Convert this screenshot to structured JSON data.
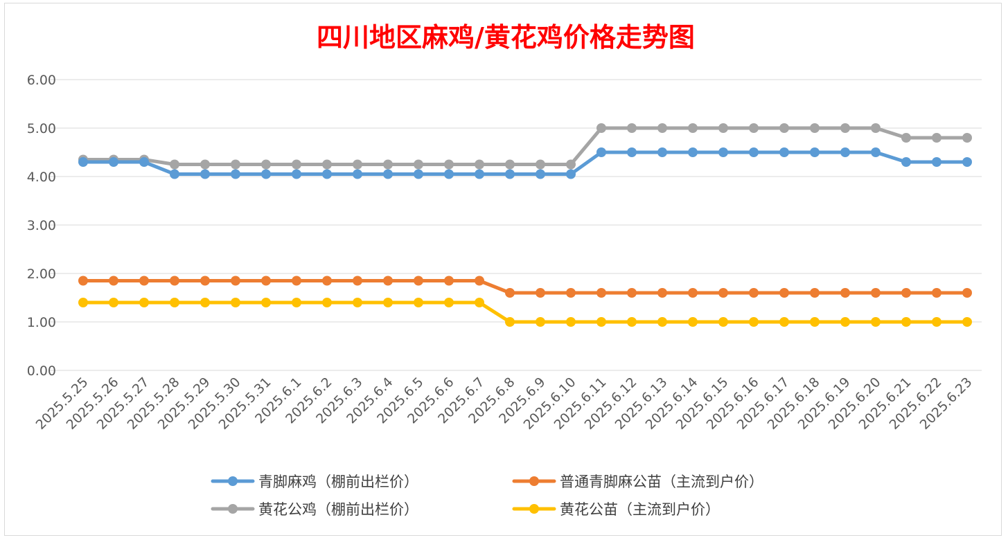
{
  "chart_data": {
    "type": "line",
    "title": "四川地区麻鸡/黄花鸡价格走势图",
    "xlabel": "",
    "ylabel": "",
    "ylim": [
      0,
      6
    ],
    "yticks": [
      "0.00",
      "1.00",
      "2.00",
      "3.00",
      "4.00",
      "5.00",
      "6.00"
    ],
    "grid": true,
    "legend_position": "bottom",
    "categories": [
      "2025.5.25",
      "2025.5.26",
      "2025.5.27",
      "2025.5.28",
      "2025.5.29",
      "2025.5.30",
      "2025.5.31",
      "2025.6.1",
      "2025.6.2",
      "2025.6.3",
      "2025.6.4",
      "2025.6.5",
      "2025.6.6",
      "2025.6.7",
      "2025.6.8",
      "2025.6.9",
      "2025.6.10",
      "2025.6.11",
      "2025.6.12",
      "2025.6.13",
      "2025.6.14",
      "2025.6.15",
      "2025.6.16",
      "2025.6.17",
      "2025.6.18",
      "2025.6.19",
      "2025.6.20",
      "2025.6.21",
      "2025.6.22",
      "2025.6.23"
    ],
    "series": [
      {
        "name": "青脚麻鸡（棚前出栏价）",
        "color": "#5b9bd5",
        "values": [
          4.3,
          4.3,
          4.3,
          4.05,
          4.05,
          4.05,
          4.05,
          4.05,
          4.05,
          4.05,
          4.05,
          4.05,
          4.05,
          4.05,
          4.05,
          4.05,
          4.05,
          4.5,
          4.5,
          4.5,
          4.5,
          4.5,
          4.5,
          4.5,
          4.5,
          4.5,
          4.5,
          4.3,
          4.3,
          4.3
        ]
      },
      {
        "name": "普通青脚麻公苗（主流到户价）",
        "color": "#ed7d31",
        "values": [
          1.85,
          1.85,
          1.85,
          1.85,
          1.85,
          1.85,
          1.85,
          1.85,
          1.85,
          1.85,
          1.85,
          1.85,
          1.85,
          1.85,
          1.6,
          1.6,
          1.6,
          1.6,
          1.6,
          1.6,
          1.6,
          1.6,
          1.6,
          1.6,
          1.6,
          1.6,
          1.6,
          1.6,
          1.6,
          1.6
        ]
      },
      {
        "name": "黄花公鸡（棚前出栏价）",
        "color": "#a5a5a5",
        "values": [
          4.35,
          4.35,
          4.35,
          4.25,
          4.25,
          4.25,
          4.25,
          4.25,
          4.25,
          4.25,
          4.25,
          4.25,
          4.25,
          4.25,
          4.25,
          4.25,
          4.25,
          5.0,
          5.0,
          5.0,
          5.0,
          5.0,
          5.0,
          5.0,
          5.0,
          5.0,
          5.0,
          4.8,
          4.8,
          4.8
        ]
      },
      {
        "name": "黄花公苗（主流到户价）",
        "color": "#ffc000",
        "values": [
          1.4,
          1.4,
          1.4,
          1.4,
          1.4,
          1.4,
          1.4,
          1.4,
          1.4,
          1.4,
          1.4,
          1.4,
          1.4,
          1.4,
          1.0,
          1.0,
          1.0,
          1.0,
          1.0,
          1.0,
          1.0,
          1.0,
          1.0,
          1.0,
          1.0,
          1.0,
          1.0,
          1.0,
          1.0,
          1.0
        ]
      }
    ]
  }
}
